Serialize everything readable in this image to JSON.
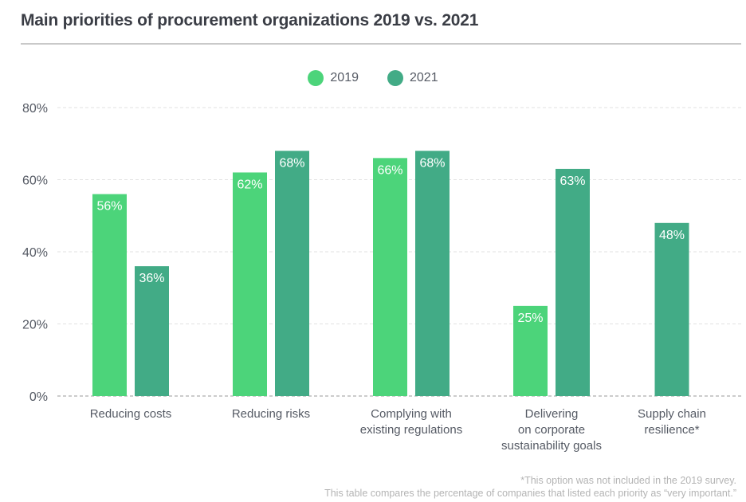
{
  "chart_data": {
    "type": "bar",
    "title": "Main priorities of procurement organizations 2019 vs. 2021",
    "categories": [
      [
        "Reducing costs"
      ],
      [
        "Reducing risks"
      ],
      [
        "Complying with",
        "existing regulations"
      ],
      [
        "Delivering",
        "on corporate",
        "sustainability goals"
      ],
      [
        "Supply chain",
        "resilience*"
      ]
    ],
    "series": [
      {
        "name": "2019",
        "color": "#4cd47a",
        "values": [
          56,
          62,
          66,
          25,
          null
        ],
        "labels": [
          "56%",
          "62%",
          "66%",
          "25%",
          null
        ]
      },
      {
        "name": "2021",
        "color": "#42ab86",
        "values": [
          36,
          68,
          68,
          63,
          48
        ],
        "labels": [
          "36%",
          "68%",
          "68%",
          "63%",
          "48%"
        ]
      }
    ],
    "ylim": [
      0,
      80
    ],
    "yticks": [
      0,
      20,
      40,
      60,
      80
    ],
    "ytick_labels": [
      "0%",
      "20%",
      "40%",
      "60%",
      "80%"
    ],
    "xlabel": "",
    "ylabel": "",
    "grid": true,
    "legend_position": "top-center"
  },
  "footnotes": [
    "*This option was not included in the 2019 survey.",
    "This table compares the percentage of companies that listed each priority as “very important.”"
  ]
}
